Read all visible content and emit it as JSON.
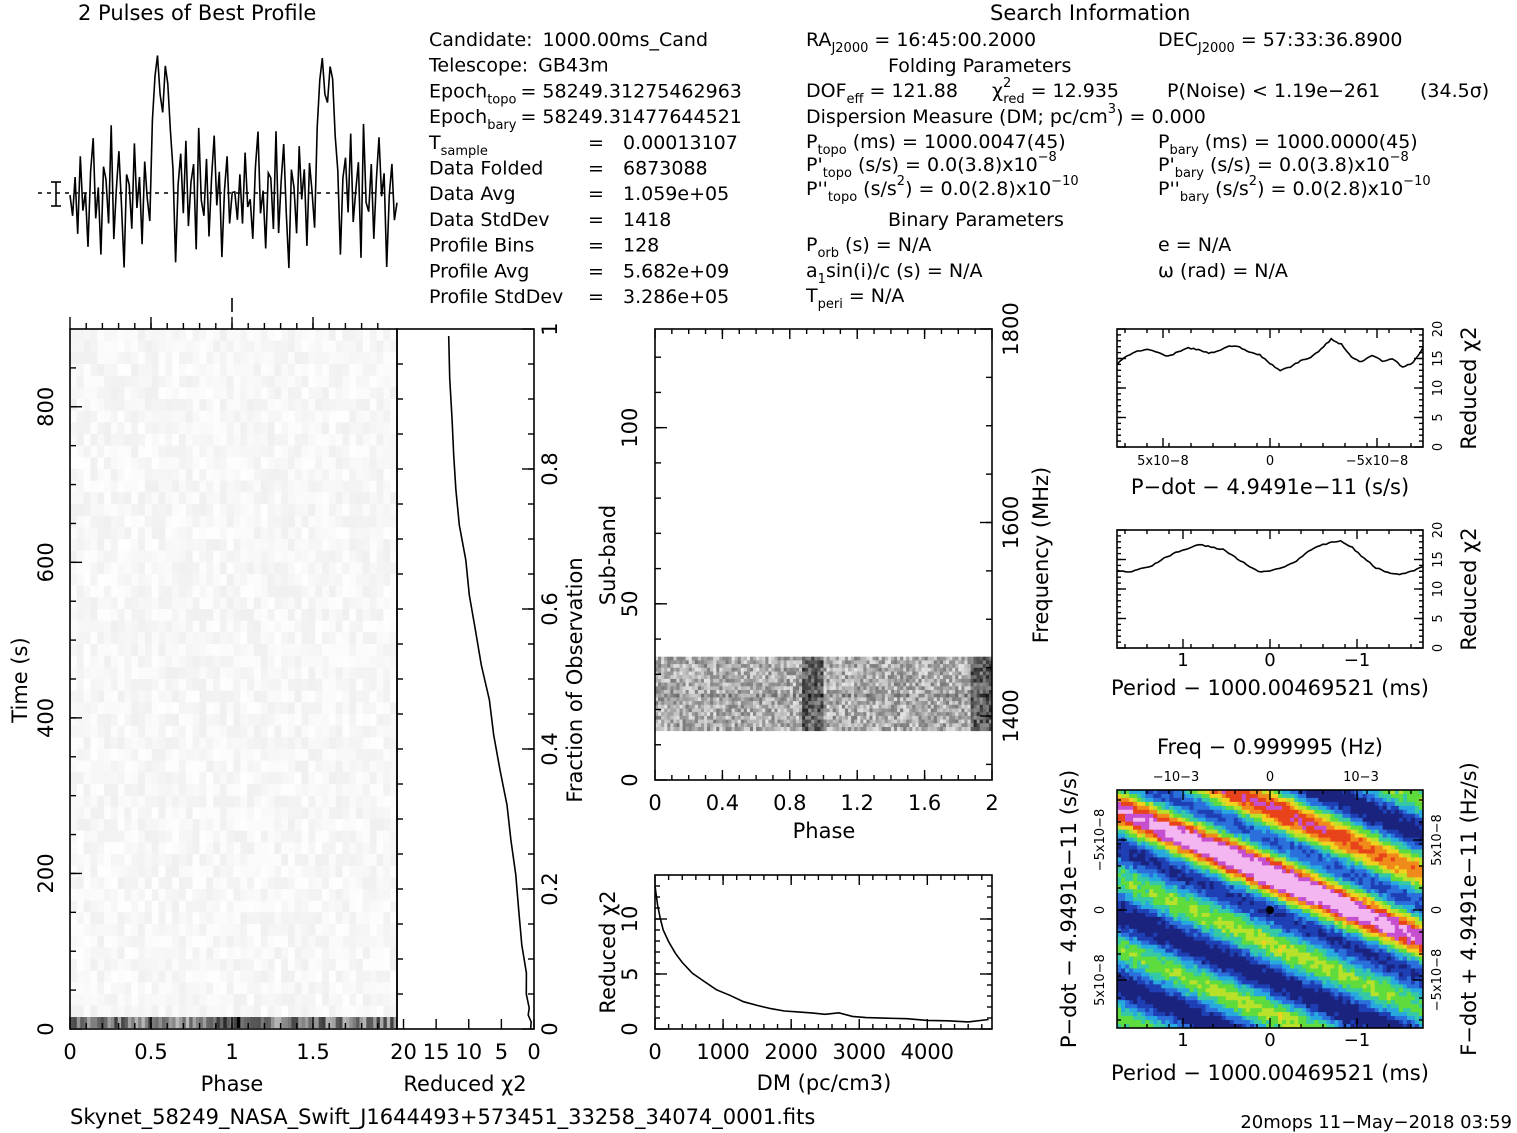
{
  "header": {
    "profile_title": "2 Pulses of Best Profile",
    "search_title": "Search Information",
    "folding_title": "Folding Parameters",
    "binary_title": "Binary Parameters"
  },
  "info_left": [
    {
      "label": "Candidate:",
      "value": "1000.00ms_Cand"
    },
    {
      "label": "Telescope:",
      "value": "GB43m"
    },
    {
      "label": "Epoch",
      "sub": "topo",
      "value": "= 58249.31275462963"
    },
    {
      "label": "Epoch",
      "sub": "bary",
      "value": "= 58249.31477644521"
    },
    {
      "label": "T",
      "sub": "sample",
      "value": "0.00013107"
    },
    {
      "label": "Data Folded",
      "value": "6873088"
    },
    {
      "label": "Data Avg",
      "value": "1.059e+05"
    },
    {
      "label": "Data StdDev",
      "value": "1418"
    },
    {
      "label": "Profile Bins",
      "value": "128"
    },
    {
      "label": "Profile Avg",
      "value": "5.682e+09"
    },
    {
      "label": "Profile StdDev",
      "value": "3.286e+05"
    }
  ],
  "search": {
    "ra_label": "RA",
    "ra_sub": "J2000",
    "ra_value": "= 16:45:00.2000",
    "dec_label": "DEC",
    "dec_sub": "J2000",
    "dec_value": "= 57:33:36.8900"
  },
  "folding": {
    "dof_label": "DOF",
    "dof_sub": "eff",
    "dof_value": "= 121.88",
    "chi_label": "χ",
    "chi_sup": "2",
    "chi_sub": "red",
    "chi_value": "= 12.935",
    "pnoise": "P(Noise) < 1.19e−261",
    "sigma": "(34.5σ)",
    "dm_text": "Dispersion Measure (DM; pc/cm",
    "dm_sup": "3",
    "dm_value": ") = 0.000",
    "ptopo_label": "P",
    "ptopo_sub": "topo",
    "ptopo_value": "(ms) =  1000.0047(45)",
    "pbary_label": "P",
    "pbary_sub": "bary",
    "pbary_value": "(ms) =  1000.0000(45)",
    "pdtopo_label": "P'",
    "pdtopo_sub": "topo",
    "pdtopo_value": "(s/s) = 0.0(3.8)x10",
    "pdtopo_exp": "−8",
    "pdbary_label": "P'",
    "pdbary_sub": "bary",
    "pdbary_value": "(s/s) = 0.0(3.8)x10",
    "pdbary_exp": "−8",
    "pddtopo_label": "P''",
    "pddtopo_sub": "topo",
    "pddtopo_value": "(s/s",
    "pddtopo_unitexp": "2",
    "pddtopo_rest": ") = 0.0(2.8)x10",
    "pddtopo_exp": "−10",
    "pddbary_label": "P''",
    "pddbary_sub": "bary",
    "pddbary_value": "(s/s",
    "pddbary_unitexp": "2",
    "pddbary_rest": ") = 0.0(2.8)x10",
    "pddbary_exp": "−10"
  },
  "binary": {
    "porb_label": "P",
    "porb_sub": "orb",
    "porb_value": "(s) = N/A",
    "e_value": "e = N/A",
    "a1_label": "a",
    "a1_sub": "1",
    "a1_value": "sin(i)/c (s) = N/A",
    "omega_value": "ω (rad) = N/A",
    "tperi_label": "T",
    "tperi_sub": "peri",
    "tperi_value": "= N/A"
  },
  "footer": {
    "filename": "Skynet_58249_NASA_Swift_J1644493+573451_33258_34074_0001.fits",
    "stamp": "20mops 11−May−2018 03:59"
  },
  "chart_data": [
    {
      "type": "line",
      "name": "profile",
      "title": "2 Pulses of Best Profile",
      "xlim": [
        0,
        2
      ],
      "ylim": [
        -3.2,
        6.2
      ],
      "seed_profile": [
        0.2,
        -0.6,
        0.9,
        -1.3,
        1.7,
        -0.4,
        0.3,
        -1.8,
        1.1,
        2.4,
        -0.7,
        0.5,
        -2.1,
        1.3,
        0.8,
        -0.9,
        2.9,
        -1.5,
        0.4,
        1.9,
        -0.2,
        -2.6,
        1.0,
        0.6,
        -1.1,
        2.2,
        -0.3,
        0.9,
        -1.7,
        1.5,
        0.1,
        -0.8,
        3.1,
        4.8,
        5.6,
        4.1,
        3.4,
        5.2,
        4.5,
        2.7,
        1.2,
        -2.4,
        0.6,
        1.8,
        -0.5,
        2.3,
        -1.0,
        0.7,
        1.4,
        -1.9,
        2.8,
        0.0,
        -0.6,
        1.6,
        -1.4,
        0.9,
        2.5,
        -0.2,
        1.1,
        -2.2,
        0.4,
        1.7,
        -0.9,
        0.3
      ]
    },
    {
      "type": "heatmap",
      "name": "time-phase",
      "xlabel": "Phase",
      "ylabel": "Time (s)",
      "xticks": [
        "0",
        "0.5",
        "1",
        "1.5"
      ],
      "yticks": [
        "0",
        "200",
        "400",
        "600",
        "800"
      ],
      "xlim": [
        0,
        2
      ],
      "ylim": [
        0,
        900
      ]
    },
    {
      "type": "line",
      "name": "time-chi2",
      "xlabel": "Reduced χ2",
      "xticks": [
        "20",
        "15",
        "10",
        "5",
        "0"
      ],
      "y2label": "Fraction of Observation",
      "y2ticks": [
        "0",
        "0.2",
        "0.4",
        "0.6",
        "0.8",
        "1"
      ],
      "x": [
        0.5,
        0.6,
        0.7,
        0.8,
        1.0,
        1.3,
        1.7,
        2.2,
        2.8,
        3.5,
        4.3,
        5.2,
        6.1,
        7.0,
        7.9,
        8.9,
        9.8,
        10.6,
        11.3,
        11.9,
        12.3,
        12.6,
        12.8,
        12.9
      ],
      "y": [
        0.0,
        0.01,
        0.02,
        0.03,
        0.05,
        0.08,
        0.12,
        0.17,
        0.22,
        0.27,
        0.32,
        0.37,
        0.42,
        0.47,
        0.52,
        0.57,
        0.62,
        0.67,
        0.72,
        0.77,
        0.82,
        0.87,
        0.93,
        0.99
      ]
    },
    {
      "type": "heatmap",
      "name": "subband-phase",
      "xlabel": "Phase",
      "ylabel": "Sub-band",
      "y2label": "Frequency (MHz)",
      "xticks": [
        "0",
        "0.4",
        "0.8",
        "1.2",
        "1.6",
        "2"
      ],
      "yticks": [
        "0",
        "50",
        "100"
      ],
      "y2ticks": [
        "1400",
        "1600",
        "1800"
      ],
      "xlim": [
        0,
        2
      ],
      "ylim": [
        0,
        128
      ],
      "active_band": [
        14,
        35
      ]
    },
    {
      "type": "line",
      "name": "dm-chi2",
      "xlabel": "DM (pc/cm3)",
      "ylabel": "Reduced χ2",
      "xticks": [
        "0",
        "1000",
        "2000",
        "3000",
        "4000"
      ],
      "yticks": [
        "0",
        "5",
        "10"
      ],
      "xlim": [
        0,
        4950
      ],
      "ylim": [
        0,
        14
      ],
      "x": [
        0,
        40,
        80,
        120,
        200,
        300,
        400,
        550,
        700,
        900,
        1100,
        1300,
        1500,
        1700,
        1900,
        2100,
        2300,
        2500,
        2700,
        2900,
        3100,
        3400,
        3700,
        4000,
        4300,
        4600,
        4900
      ],
      "y": [
        13.0,
        11.2,
        10.0,
        9.0,
        7.9,
        6.9,
        6.1,
        5.1,
        4.4,
        3.6,
        3.0,
        2.5,
        2.2,
        1.9,
        1.7,
        1.6,
        1.4,
        1.3,
        1.5,
        1.2,
        1.1,
        1.0,
        0.9,
        0.8,
        0.7,
        0.7,
        0.8
      ]
    },
    {
      "type": "line",
      "name": "pdot-chi2",
      "xlabel": "P−dot − 4.9491e−11 (s/s)",
      "y2label": "Reduced χ2",
      "xticks": [
        "5x10−8",
        "0",
        "−5x10−8"
      ],
      "yticks": [
        "0",
        "5",
        "10",
        "15",
        "20"
      ],
      "ylim": [
        0,
        20
      ],
      "y": [
        14.0,
        15.5,
        16.2,
        16.5,
        16.0,
        15.4,
        16.1,
        16.8,
        16.5,
        15.9,
        16.3,
        17.2,
        16.9,
        16.0,
        15.6,
        14.2,
        13.0,
        13.6,
        14.6,
        15.2,
        16.6,
        18.3,
        17.4,
        15.2,
        14.4,
        15.6,
        14.6,
        14.9,
        13.6,
        14.2,
        16.8
      ]
    },
    {
      "type": "line",
      "name": "period-chi2",
      "xlabel": "Period − 1000.00469521 (ms)",
      "y2label": "Reduced χ2",
      "xticks": [
        "1",
        "0",
        "−1"
      ],
      "yticks": [
        "0",
        "5",
        "10",
        "15",
        "20"
      ],
      "ylim": [
        0,
        20
      ],
      "y": [
        13.2,
        12.8,
        13.4,
        14.0,
        15.2,
        16.2,
        16.8,
        17.6,
        17.1,
        16.7,
        15.4,
        14.2,
        12.9,
        13.1,
        13.6,
        14.4,
        16.0,
        17.2,
        17.8,
        18.1,
        17.0,
        15.2,
        13.6,
        12.8,
        12.4,
        13.0,
        13.8
      ]
    },
    {
      "type": "heatmap",
      "name": "period-pdot",
      "title": "Freq − 0.999995 (Hz)",
      "xlabel": "Period − 1000.00469521 (ms)",
      "ylabel": "P−dot − 4.9491e−11 (s/s)",
      "y2label": "F−dot + 4.9491e−11 (Hz/s)",
      "xticks": [
        "1",
        "0",
        "−1"
      ],
      "top_ticks": [
        "−10−3",
        "0",
        "10−3"
      ],
      "yticks": [
        "−5x10−8",
        "0",
        "5x10−8"
      ],
      "y2ticks": [
        "5x10−8",
        "0",
        "−5x10−8"
      ]
    }
  ]
}
